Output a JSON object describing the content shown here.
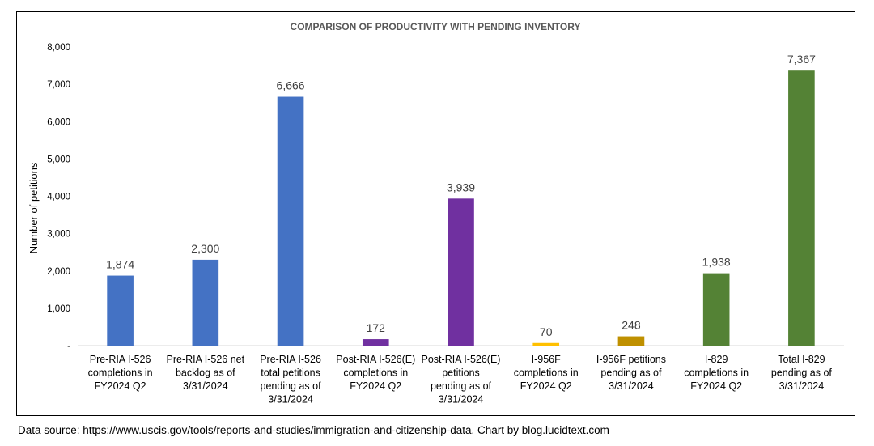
{
  "chart_data": {
    "type": "bar",
    "title": "COMPARISON OF  PRODUCTIVITY WITH PENDING INVENTORY",
    "ylabel": "Number of petitions",
    "xlabel": "",
    "ylim": [
      0,
      8000
    ],
    "yticks": [
      0,
      1000,
      2000,
      3000,
      4000,
      5000,
      6000,
      7000,
      8000
    ],
    "ytick_labels": [
      "-",
      "1,000",
      "2,000",
      "3,000",
      "4,000",
      "5,000",
      "6,000",
      "7,000",
      "8,000"
    ],
    "grid": false,
    "legend": "none",
    "categories": [
      [
        "Pre-RIA I-526",
        "completions in",
        "FY2024 Q2"
      ],
      [
        "Pre-RIA I-526 net",
        "backlog as of",
        "3/31/2024"
      ],
      [
        "Pre-RIA I-526",
        "total petitions",
        "pending as of",
        "3/31/2024"
      ],
      [
        "Post-RIA I-526(E)",
        "completions in",
        "FY2024 Q2"
      ],
      [
        "Post-RIA I-526(E)",
        "petitions",
        "pending as of",
        "3/31/2024"
      ],
      [
        "I-956F",
        "completions in",
        "FY2024 Q2"
      ],
      [
        "I-956F petitions",
        "pending as of",
        "3/31/2024"
      ],
      [
        "I-829",
        "completions in",
        "FY2024 Q2"
      ],
      [
        "Total I-829",
        "pending as of",
        "3/31/2024"
      ]
    ],
    "values": [
      1874,
      2300,
      6666,
      172,
      3939,
      70,
      248,
      1938,
      7367
    ],
    "value_labels": [
      "1,874",
      "2,300",
      "6,666",
      "172",
      "3,939",
      "70",
      "248",
      "1,938",
      "7,367"
    ],
    "colors": [
      "#4472C4",
      "#4472C4",
      "#4472C4",
      "#7030A0",
      "#7030A0",
      "#FFC000",
      "#BF9000",
      "#548235",
      "#548235"
    ]
  },
  "source_note": "Data source: https://www.uscis.gov/tools/reports-and-studies/immigration-and-citizenship-data. Chart by blog.lucidtext.com"
}
